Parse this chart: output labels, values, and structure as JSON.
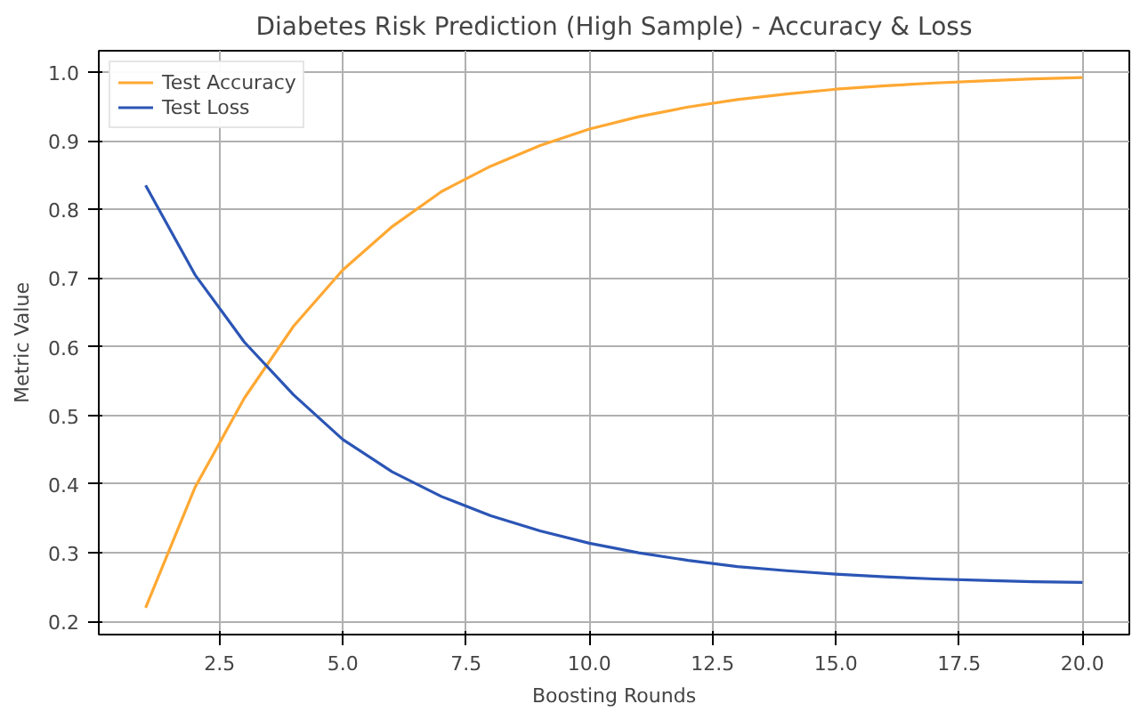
{
  "chart_data": {
    "type": "line",
    "title": "Diabetes Risk Prediction (High Sample) - Accuracy & Loss",
    "xlabel": "Boosting Rounds",
    "ylabel": "Metric Value",
    "x": [
      1,
      2,
      3,
      4,
      5,
      6,
      7,
      8,
      9,
      10,
      11,
      12,
      13,
      14,
      15,
      16,
      17,
      18,
      19,
      20
    ],
    "series": [
      {
        "name": "Test Accuracy",
        "color": "#ffa833",
        "values": [
          0.22,
          0.395,
          0.525,
          0.63,
          0.712,
          0.775,
          0.826,
          0.863,
          0.893,
          0.917,
          0.935,
          0.949,
          0.96,
          0.968,
          0.975,
          0.98,
          0.984,
          0.987,
          0.99,
          0.992
        ]
      },
      {
        "name": "Test Loss",
        "color": "#2b55b5",
        "values": [
          0.835,
          0.705,
          0.607,
          0.53,
          0.465,
          0.418,
          0.382,
          0.354,
          0.332,
          0.314,
          0.3,
          0.289,
          0.28,
          0.274,
          0.269,
          0.265,
          0.262,
          0.26,
          0.258,
          0.257
        ]
      }
    ],
    "xlim": [
      0.05,
      20.95
    ],
    "ylim": [
      0.181,
      1.031
    ],
    "xticks": [
      {
        "value": 2.5,
        "label": "2.5"
      },
      {
        "value": 5,
        "label": "5.0"
      },
      {
        "value": 7.5,
        "label": "7.5"
      },
      {
        "value": 10,
        "label": "10.0"
      },
      {
        "value": 12.5,
        "label": "12.5"
      },
      {
        "value": 15,
        "label": "15.0"
      },
      {
        "value": 17.5,
        "label": "17.5"
      },
      {
        "value": 20,
        "label": "20.0"
      }
    ],
    "yticks": [
      {
        "value": 0.2,
        "label": "0.2"
      },
      {
        "value": 0.3,
        "label": "0.3"
      },
      {
        "value": 0.4,
        "label": "0.4"
      },
      {
        "value": 0.5,
        "label": "0.5"
      },
      {
        "value": 0.6,
        "label": "0.6"
      },
      {
        "value": 0.7,
        "label": "0.7"
      },
      {
        "value": 0.8,
        "label": "0.8"
      },
      {
        "value": 0.9,
        "label": "0.9"
      },
      {
        "value": 1.0,
        "label": "1.0"
      }
    ],
    "grid": true,
    "legend": "top left",
    "marker": "none",
    "line_style": "solid"
  }
}
